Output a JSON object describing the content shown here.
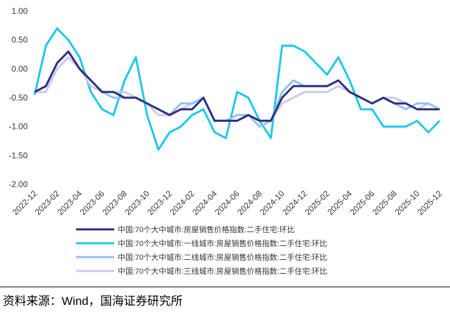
{
  "chart_data": {
    "type": "line",
    "categories": [
      "2022-12",
      null,
      "2023-02",
      null,
      "2023-04",
      null,
      "2023-06",
      null,
      "2023-08",
      null,
      "2023-10",
      null,
      "2023-12",
      null,
      "2024-02",
      null,
      "2024-04",
      null,
      "2024-06",
      null,
      "2024-08",
      null,
      "2024-10",
      null,
      "2024-12",
      null,
      "2025-02",
      null,
      "2025-04",
      null,
      "2025-06",
      null,
      "2025-08",
      null,
      "2025-10",
      null,
      "2025-12"
    ],
    "ylim": [
      -2,
      1
    ],
    "yticks": [
      {
        "value": 1,
        "label": "1.00"
      },
      {
        "value": 0.5,
        "label": "0.50"
      },
      {
        "value": 0,
        "label": "0.00"
      },
      {
        "value": -0.5,
        "label": "-0.50"
      },
      {
        "value": -1,
        "label": "-1.00"
      },
      {
        "value": -1.5,
        "label": "-1.50"
      },
      {
        "value": -2,
        "label": "-2.00"
      }
    ],
    "grid": false,
    "series": [
      {
        "name": "中国:70个大中城市:房屋销售价格指数:二手住宅:环比",
        "color": "#2e2f7f",
        "values": [
          -0.4,
          -0.3,
          0.1,
          0.3,
          0.0,
          -0.2,
          -0.4,
          -0.4,
          -0.5,
          -0.5,
          -0.6,
          -0.7,
          -0.8,
          -0.7,
          -0.7,
          -0.5,
          -0.9,
          -0.9,
          -0.9,
          -0.8,
          -0.9,
          -0.9,
          -0.5,
          -0.3,
          -0.3,
          -0.3,
          -0.3,
          -0.2,
          -0.4,
          -0.5,
          -0.6,
          -0.5,
          -0.6,
          -0.6,
          -0.7,
          -0.7,
          -0.7
        ]
      },
      {
        "name": "中国:70个大中城市:一线城市:房屋销售价格指数:二手住宅:环比",
        "color": "#1ec8ea",
        "values": [
          -0.45,
          0.4,
          0.7,
          0.5,
          0.2,
          -0.4,
          -0.7,
          -0.8,
          -0.2,
          0.2,
          -0.8,
          -1.4,
          -1.1,
          -1.0,
          -0.8,
          -0.7,
          -1.1,
          -1.2,
          -0.4,
          -0.5,
          -0.9,
          -1.2,
          0.4,
          0.4,
          0.3,
          0.1,
          -0.1,
          0.2,
          -0.2,
          -0.7,
          -0.7,
          -1.0,
          -1.0,
          -1.0,
          -0.9,
          -1.1,
          -0.9
        ]
      },
      {
        "name": "中国:70个大中城市:二线城市:房屋销售价格指数:二手住宅:环比",
        "color": "#8fc3ea",
        "values": [
          -0.4,
          -0.3,
          0.1,
          0.3,
          0.0,
          -0.2,
          -0.4,
          -0.5,
          -0.5,
          -0.5,
          -0.6,
          -0.7,
          -0.8,
          -0.6,
          -0.6,
          -0.5,
          -0.9,
          -0.9,
          -0.8,
          -0.8,
          -1.0,
          -0.9,
          -0.4,
          -0.2,
          -0.3,
          -0.3,
          -0.3,
          -0.2,
          -0.4,
          -0.5,
          -0.6,
          -0.5,
          -0.6,
          -0.7,
          -0.6,
          -0.6,
          -0.7
        ]
      },
      {
        "name": "中国:70个大中城市:三线城市:房屋销售价格指数:二手住宅:环比",
        "color": "#cbc9ee",
        "values": [
          -0.4,
          -0.4,
          0.0,
          0.2,
          0.0,
          -0.3,
          -0.4,
          -0.4,
          -0.4,
          -0.5,
          -0.6,
          -0.8,
          -0.8,
          -0.7,
          -0.6,
          -0.5,
          -0.9,
          -0.9,
          -0.9,
          -0.8,
          -0.9,
          -0.9,
          -0.6,
          -0.5,
          -0.4,
          -0.4,
          -0.4,
          -0.3,
          -0.4,
          -0.5,
          -0.6,
          -0.5,
          -0.5,
          -0.6,
          -0.7,
          -0.6,
          -0.7
        ]
      }
    ]
  },
  "source": "资料来源：Wind，国海证券研究所"
}
